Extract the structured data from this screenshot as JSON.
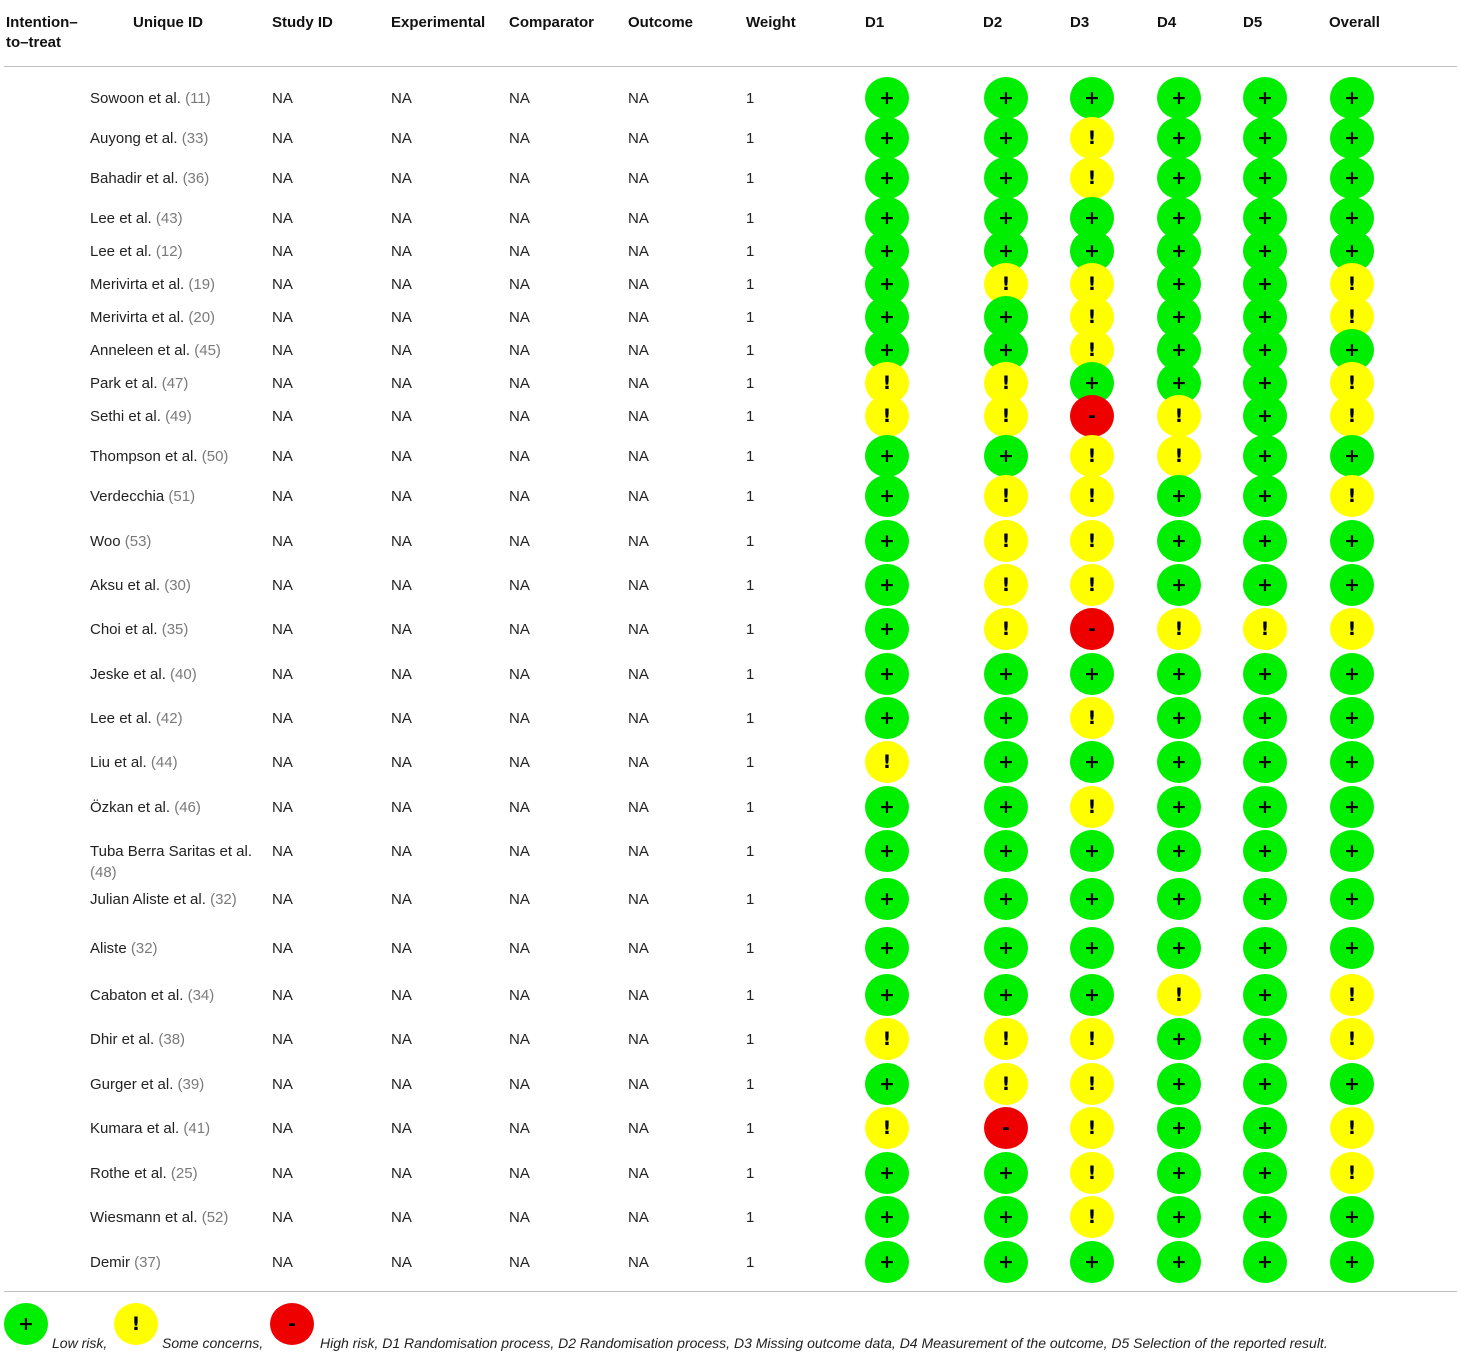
{
  "headers": {
    "itt": "Intention–to–treat",
    "unique_id": "Unique ID",
    "study_id": "Study ID",
    "experimental": "Experimental",
    "comparator": "Comparator",
    "outcome": "Outcome",
    "weight": "Weight",
    "d1": "D1",
    "d2": "D2",
    "d3": "D3",
    "d4": "D4",
    "d5": "D5",
    "overall": "Overall"
  },
  "symbols": {
    "low": "+",
    "some": "!",
    "high": "-"
  },
  "colors": {
    "low": "#00ee00",
    "some": "#ffff00",
    "high": "#ee0000"
  },
  "rows": [
    {
      "name": "Sowoon et al.",
      "ref": "(11)",
      "study_id": "NA",
      "experimental": "NA",
      "comparator": "NA",
      "outcome": "NA",
      "weight": "1",
      "ratings": [
        "low",
        "low",
        "low",
        "low",
        "low",
        "low"
      ]
    },
    {
      "name": "Auyong et al.",
      "ref": "(33)",
      "study_id": "NA",
      "experimental": "NA",
      "comparator": "NA",
      "outcome": "NA",
      "weight": "1",
      "ratings": [
        "low",
        "low",
        "some",
        "low",
        "low",
        "low"
      ]
    },
    {
      "name": "Bahadir et al.",
      "ref": "(36)",
      "study_id": "NA",
      "experimental": "NA",
      "comparator": "NA",
      "outcome": "NA",
      "weight": "1",
      "ratings": [
        "low",
        "low",
        "some",
        "low",
        "low",
        "low"
      ]
    },
    {
      "name": "Lee et al.",
      "ref": "(43)",
      "study_id": "NA",
      "experimental": "NA",
      "comparator": "NA",
      "outcome": "NA",
      "weight": "1",
      "ratings": [
        "low",
        "low",
        "low",
        "low",
        "low",
        "low"
      ]
    },
    {
      "name": "Lee et al.",
      "ref": "(12)",
      "study_id": "NA",
      "experimental": "NA",
      "comparator": "NA",
      "outcome": "NA",
      "weight": "1",
      "ratings": [
        "low",
        "low",
        "low",
        "low",
        "low",
        "low"
      ]
    },
    {
      "name": "Merivirta et al.",
      "ref": "(19)",
      "study_id": "NA",
      "experimental": "NA",
      "comparator": "NA",
      "outcome": "NA",
      "weight": "1",
      "ratings": [
        "low",
        "some",
        "some",
        "low",
        "low",
        "some"
      ]
    },
    {
      "name": "Merivirta et al.",
      "ref": "(20)",
      "study_id": "NA",
      "experimental": "NA",
      "comparator": "NA",
      "outcome": "NA",
      "weight": "1",
      "ratings": [
        "low",
        "low",
        "some",
        "low",
        "low",
        "some"
      ]
    },
    {
      "name": "Anneleen et al.",
      "ref": "(45)",
      "study_id": "NA",
      "experimental": "NA",
      "comparator": "NA",
      "outcome": "NA",
      "weight": "1",
      "ratings": [
        "low",
        "low",
        "some",
        "low",
        "low",
        "low"
      ]
    },
    {
      "name": "Park et al.",
      "ref": "(47)",
      "study_id": "NA",
      "experimental": "NA",
      "comparator": "NA",
      "outcome": "NA",
      "weight": "1",
      "ratings": [
        "some",
        "some",
        "low",
        "low",
        "low",
        "some"
      ]
    },
    {
      "name": "Sethi et al.",
      "ref": "(49)",
      "study_id": "NA",
      "experimental": "NA",
      "comparator": "NA",
      "outcome": "NA",
      "weight": "1",
      "ratings": [
        "some",
        "some",
        "high",
        "some",
        "low",
        "some"
      ]
    },
    {
      "name": "Thompson et al.",
      "ref": "(50)",
      "study_id": "NA",
      "experimental": "NA",
      "comparator": "NA",
      "outcome": "NA",
      "weight": "1",
      "ratings": [
        "low",
        "low",
        "some",
        "some",
        "low",
        "low"
      ]
    },
    {
      "name": "Verdecchia",
      "ref": "(51)",
      "study_id": "NA",
      "experimental": "NA",
      "comparator": "NA",
      "outcome": "NA",
      "weight": "1",
      "ratings": [
        "low",
        "some",
        "some",
        "low",
        "low",
        "some"
      ]
    },
    {
      "name": "Woo",
      "ref": "(53)",
      "study_id": "NA",
      "experimental": "NA",
      "comparator": "NA",
      "outcome": "NA",
      "weight": "1",
      "ratings": [
        "low",
        "some",
        "some",
        "low",
        "low",
        "low"
      ]
    },
    {
      "name": "Aksu et al.",
      "ref": "(30)",
      "study_id": "NA",
      "experimental": "NA",
      "comparator": "NA",
      "outcome": "NA",
      "weight": "1",
      "ratings": [
        "low",
        "some",
        "some",
        "low",
        "low",
        "low"
      ]
    },
    {
      "name": "Choi et al.",
      "ref": "(35)",
      "study_id": "NA",
      "experimental": "NA",
      "comparator": "NA",
      "outcome": "NA",
      "weight": "1",
      "ratings": [
        "low",
        "some",
        "high",
        "some",
        "some",
        "some"
      ]
    },
    {
      "name": "Jeske et al.",
      "ref": "(40)",
      "study_id": "NA",
      "experimental": "NA",
      "comparator": "NA",
      "outcome": "NA",
      "weight": "1",
      "ratings": [
        "low",
        "low",
        "low",
        "low",
        "low",
        "low"
      ]
    },
    {
      "name": "Lee et al.",
      "ref": "(42)",
      "study_id": "NA",
      "experimental": "NA",
      "comparator": "NA",
      "outcome": "NA",
      "weight": "1",
      "ratings": [
        "low",
        "low",
        "some",
        "low",
        "low",
        "low"
      ]
    },
    {
      "name": "Liu et al.",
      "ref": "(44)",
      "study_id": "NA",
      "experimental": "NA",
      "comparator": "NA",
      "outcome": "NA",
      "weight": "1",
      "ratings": [
        "some",
        "low",
        "low",
        "low",
        "low",
        "low"
      ]
    },
    {
      "name": "Özkan et al.",
      "ref": "(46)",
      "study_id": "NA",
      "experimental": "NA",
      "comparator": "NA",
      "outcome": "NA",
      "weight": "1",
      "ratings": [
        "low",
        "low",
        "some",
        "low",
        "low",
        "low"
      ]
    },
    {
      "name": "Tuba Berra Saritas et al.",
      "ref": "(48)",
      "study_id": "NA",
      "experimental": "NA",
      "comparator": "NA",
      "outcome": "NA",
      "weight": "1",
      "ratings": [
        "low",
        "low",
        "low",
        "low",
        "low",
        "low"
      ]
    },
    {
      "name": "Julian Aliste et al.",
      "ref": "(32)",
      "study_id": "NA",
      "experimental": "NA",
      "comparator": "NA",
      "outcome": "NA",
      "weight": "1",
      "ratings": [
        "low",
        "low",
        "low",
        "low",
        "low",
        "low"
      ]
    },
    {
      "name": "Aliste",
      "ref": "(32)",
      "study_id": "NA",
      "experimental": "NA",
      "comparator": "NA",
      "outcome": "NA",
      "weight": "1",
      "ratings": [
        "low",
        "low",
        "low",
        "low",
        "low",
        "low"
      ]
    },
    {
      "name": "Cabaton et al.",
      "ref": "(34)",
      "study_id": "NA",
      "experimental": "NA",
      "comparator": "NA",
      "outcome": "NA",
      "weight": "1",
      "ratings": [
        "low",
        "low",
        "low",
        "some",
        "low",
        "some"
      ]
    },
    {
      "name": "Dhir et al.",
      "ref": "(38)",
      "study_id": "NA",
      "experimental": "NA",
      "comparator": "NA",
      "outcome": "NA",
      "weight": "1",
      "ratings": [
        "some",
        "some",
        "some",
        "low",
        "low",
        "some"
      ]
    },
    {
      "name": "Gurger et al.",
      "ref": "(39)",
      "study_id": "NA",
      "experimental": "NA",
      "comparator": "NA",
      "outcome": "NA",
      "weight": "1",
      "ratings": [
        "low",
        "some",
        "some",
        "low",
        "low",
        "low"
      ]
    },
    {
      "name": "Kumara et al.",
      "ref": "(41)",
      "study_id": "NA",
      "experimental": "NA",
      "comparator": "NA",
      "outcome": "NA",
      "weight": "1",
      "ratings": [
        "some",
        "high",
        "some",
        "low",
        "low",
        "some"
      ]
    },
    {
      "name": "Rothe et al.",
      "ref": "(25)",
      "study_id": "NA",
      "experimental": "NA",
      "comparator": "NA",
      "outcome": "NA",
      "weight": "1",
      "ratings": [
        "low",
        "low",
        "some",
        "low",
        "low",
        "some"
      ]
    },
    {
      "name": "Wiesmann et al.",
      "ref": "(52)",
      "study_id": "NA",
      "experimental": "NA",
      "comparator": "NA",
      "outcome": "NA",
      "weight": "1",
      "ratings": [
        "low",
        "low",
        "some",
        "low",
        "low",
        "low"
      ]
    },
    {
      "name": "Demir",
      "ref": "(37)",
      "study_id": "NA",
      "experimental": "NA",
      "comparator": "NA",
      "outcome": "NA",
      "weight": "1",
      "ratings": [
        "low",
        "low",
        "low",
        "low",
        "low",
        "low"
      ]
    }
  ],
  "legend": {
    "low_text": "Low risk,",
    "some_text": "Some concerns,",
    "high_text": "High risk, D1 Randomisation process, D2 Randomisation process, D3 Missing outcome data, D4 Measurement of the outcome, D5 Selection of the reported result."
  }
}
